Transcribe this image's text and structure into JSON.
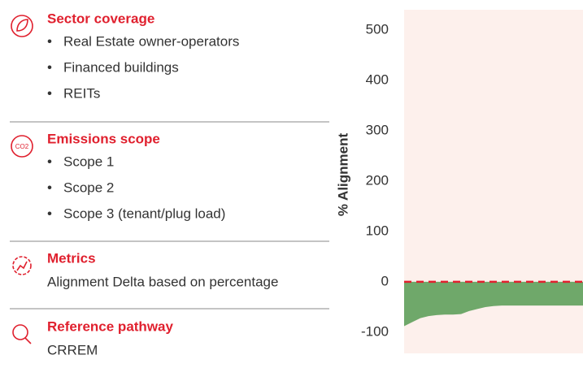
{
  "panel": {
    "sections": [
      {
        "title": "Sector coverage",
        "items": [
          "Real Estate owner-operators",
          "Financed buildings",
          "REITs"
        ]
      },
      {
        "title": "Emissions scope",
        "items": [
          "Scope 1",
          "Scope 2",
          "Scope 3 (tenant/plug load)"
        ]
      },
      {
        "title": "Metrics",
        "text": "Alignment Delta based on percentage"
      },
      {
        "title": "Reference pathway",
        "text": "CRREM"
      }
    ]
  },
  "chart_data": {
    "type": "area",
    "ylabel": "% Alignment",
    "values": [
      -88,
      -80,
      -72,
      -68,
      -66,
      -65,
      -65,
      -64,
      -58,
      -54,
      -50,
      -48,
      -47,
      -47,
      -47,
      -47,
      -47,
      -47,
      -47,
      -47,
      -47,
      -47,
      -47
    ],
    "color": "#6fa86a",
    "background": "#fdf0ec",
    "reference_line": 0,
    "reference_color": "#e0202e",
    "ylim": [
      -142,
      540
    ],
    "yticks": [
      500,
      400,
      300,
      200,
      100,
      0,
      -100
    ]
  }
}
